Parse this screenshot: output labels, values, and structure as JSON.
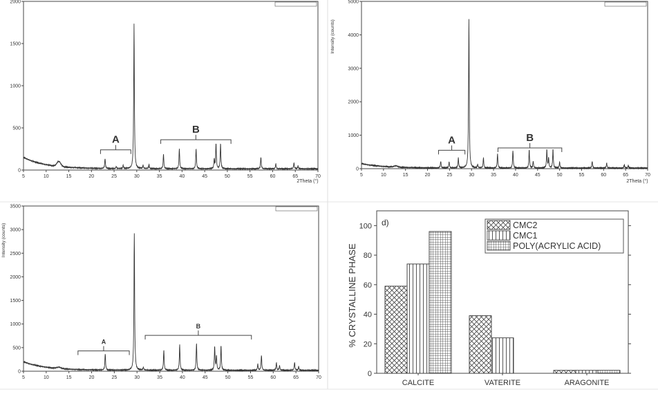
{
  "chart_data": [
    {
      "type": "line",
      "panel": "a",
      "xlabel": "2Theta (°)",
      "ylabel": "",
      "xlim": [
        5,
        70
      ],
      "ylim": [
        0,
        2000
      ],
      "xticks": [
        5,
        10,
        15,
        20,
        25,
        30,
        35,
        40,
        45,
        50,
        55,
        60,
        65,
        70
      ],
      "yticks": [
        0,
        500,
        1000,
        1500,
        2000
      ],
      "background": {
        "start": 150,
        "end": 15,
        "hump_x": 12.8,
        "hump_y": 60
      },
      "peaks": [
        [
          23.0,
          120
        ],
        [
          25.5,
          25
        ],
        [
          27.0,
          40
        ],
        [
          29.4,
          1720
        ],
        [
          31.4,
          40
        ],
        [
          32.7,
          50
        ],
        [
          35.9,
          175
        ],
        [
          39.4,
          240
        ],
        [
          43.1,
          240
        ],
        [
          47.1,
          110
        ],
        [
          47.5,
          300
        ],
        [
          48.5,
          300
        ],
        [
          57.4,
          140
        ],
        [
          60.7,
          60
        ],
        [
          64.7,
          70
        ],
        [
          65.6,
          35
        ]
      ],
      "annotations": [
        {
          "label": "A",
          "from": 22,
          "to": 28.7,
          "level": 240
        },
        {
          "label": "B",
          "from": 35.3,
          "to": 50.8,
          "level": 360
        }
      ]
    },
    {
      "type": "line",
      "panel": "b",
      "xlabel": "2Theta (°)",
      "ylabel": "Intensity (counts)",
      "xlim": [
        5,
        70
      ],
      "ylim": [
        0,
        5000
      ],
      "xticks": [
        5,
        10,
        15,
        20,
        25,
        30,
        35,
        40,
        45,
        50,
        55,
        60,
        65,
        70
      ],
      "yticks": [
        0,
        1000,
        2000,
        3000,
        4000,
        5000
      ],
      "background": {
        "start": 150,
        "end": 20,
        "hump_x": 12.8,
        "hump_y": 40
      },
      "peaks": [
        [
          23.0,
          200
        ],
        [
          24.9,
          180
        ],
        [
          27.0,
          300
        ],
        [
          29.4,
          4450
        ],
        [
          31.4,
          100
        ],
        [
          32.7,
          300
        ],
        [
          35.9,
          430
        ],
        [
          39.4,
          520
        ],
        [
          43.1,
          550
        ],
        [
          44.0,
          200
        ],
        [
          47.1,
          550
        ],
        [
          47.5,
          300
        ],
        [
          48.5,
          560
        ],
        [
          50.0,
          180
        ],
        [
          57.4,
          200
        ],
        [
          60.7,
          150
        ],
        [
          64.7,
          100
        ],
        [
          65.6,
          80
        ]
      ],
      "annotations": [
        {
          "label": "A",
          "from": 22.5,
          "to": 28.5,
          "level": 550
        },
        {
          "label": "B",
          "from": 36,
          "to": 50.5,
          "level": 620
        }
      ]
    },
    {
      "type": "line",
      "panel": "c",
      "xlabel": "",
      "ylabel": "Intensity (counts)",
      "xlim": [
        5,
        70
      ],
      "ylim": [
        0,
        3500
      ],
      "xticks": [
        5,
        10,
        15,
        20,
        25,
        30,
        35,
        40,
        45,
        50,
        55,
        60,
        65,
        70
      ],
      "yticks": [
        0,
        500,
        1000,
        1500,
        2000,
        2500,
        3000,
        3500
      ],
      "background": {
        "start": 200,
        "end": 20,
        "hump_x": 12.8,
        "hump_y": 30
      },
      "peaks": [
        [
          23.0,
          350
        ],
        [
          29.4,
          2900
        ],
        [
          31.4,
          60
        ],
        [
          35.9,
          430
        ],
        [
          39.4,
          550
        ],
        [
          43.1,
          580
        ],
        [
          47.1,
          500
        ],
        [
          47.5,
          300
        ],
        [
          48.5,
          520
        ],
        [
          56.6,
          130
        ],
        [
          57.4,
          320
        ],
        [
          60.7,
          160
        ],
        [
          61.4,
          100
        ],
        [
          64.7,
          170
        ],
        [
          65.6,
          80
        ]
      ],
      "annotations": [
        {
          "label": "A",
          "from": 17,
          "to": 28.3,
          "level": 430
        },
        {
          "label": "B",
          "from": 31.8,
          "to": 55.2,
          "level": 760
        }
      ]
    },
    {
      "type": "bar",
      "panel": "d",
      "title": "d)",
      "xlabel": "",
      "ylabel": "% CRYSTALLINE PHASE",
      "categories": [
        "CALCITE",
        "VATERITE",
        "ARAGONITE"
      ],
      "ylim": [
        0,
        110
      ],
      "yticks": [
        0,
        20,
        40,
        60,
        80,
        100
      ],
      "legend_position": "top-right",
      "series": [
        {
          "name": "CMC2",
          "pattern": "crosshatch",
          "values": [
            59,
            39,
            2
          ]
        },
        {
          "name": "CMC1",
          "pattern": "vertical",
          "values": [
            74,
            24,
            2
          ]
        },
        {
          "name": "POLY(ACRYLIC ACID)",
          "pattern": "grid",
          "values": [
            96,
            0,
            2
          ]
        }
      ]
    }
  ]
}
